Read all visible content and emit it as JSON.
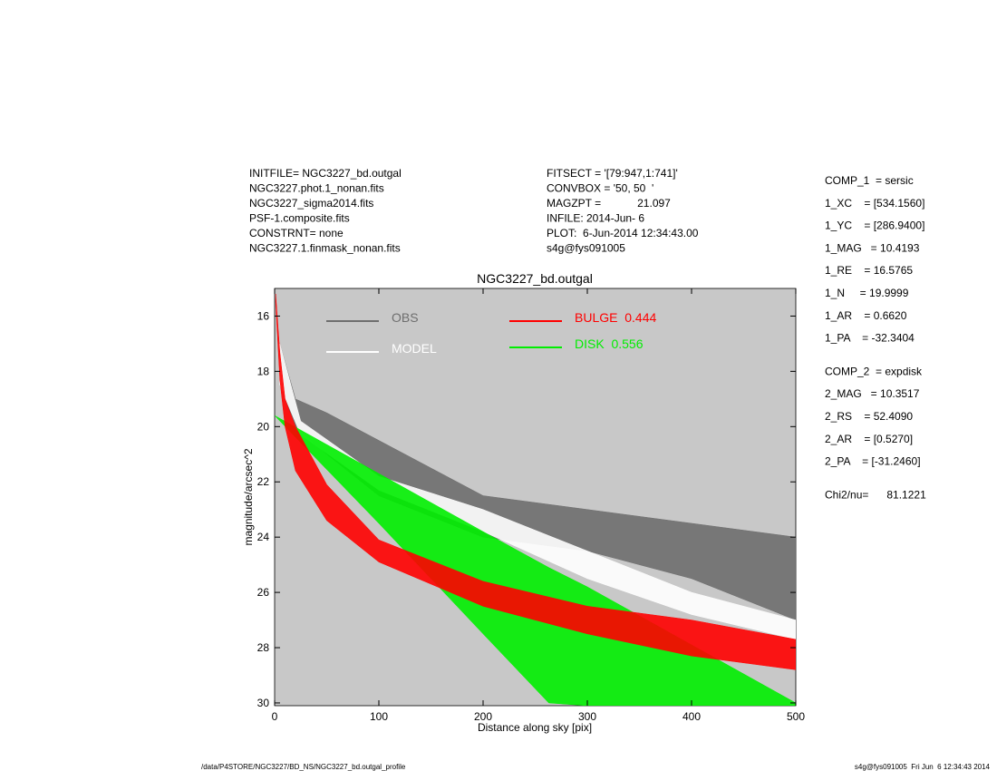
{
  "header": {
    "left": [
      "INITFILE= NGC3227_bd.outgal",
      "NGC3227.phot.1_nonan.fits",
      "NGC3227_sigma2014.fits",
      "PSF-1.composite.fits",
      "CONSTRNT= none",
      "NGC3227.1.finmask_nonan.fits"
    ],
    "middle": [
      "FITSECT = '[79:947,1:741]'",
      "CONVBOX = '50, 50  '",
      "MAGZPT =            21.097",
      "INFILE: 2014-Jun- 6",
      "PLOT:  6-Jun-2014 12:34:43.00",
      "s4g@fys091005"
    ]
  },
  "components": [
    [
      "COMP_1  = sersic",
      "1_XC    = [534.1560]",
      "1_YC    = [286.9400]",
      "1_MAG   = 10.4193",
      "1_RE    = 16.5765",
      "1_N     = 19.9999",
      "1_AR    = 0.6620",
      "1_PA    = -32.3404"
    ],
    [
      "COMP_2  = expdisk",
      "2_MAG   = 10.3517",
      "2_RS    = 52.4090",
      "2_AR    = [0.5270]",
      "2_PA    = [-31.2460]"
    ],
    [
      "Chi2/nu=      81.1221"
    ]
  ],
  "footer": {
    "left": "/data/P4STORE/NGC3227/BD_NS/NGC3227_bd.outgal_profile",
    "right": "s4g@fys091005  Fri Jun  6 12:34:43 2014"
  },
  "chart_data": {
    "type": "band",
    "title": "NGC3227_bd.outgal",
    "x_label": "Distance along sky [pix]",
    "y_label": "magnitude/arcsec^2",
    "xlim": [
      0,
      500
    ],
    "ylim": [
      15,
      30.1
    ],
    "y_inverted": true,
    "xticks": [
      0,
      100,
      200,
      300,
      400,
      500
    ],
    "yticks": [
      16,
      18,
      20,
      22,
      24,
      26,
      28,
      30
    ],
    "background": "#c8c8c8",
    "series": [
      {
        "name": "OBS",
        "color": "#6e6e6e",
        "x": [
          5,
          20,
          50,
          100,
          200,
          300,
          400,
          500
        ],
        "values": [
          17,
          19,
          19.5,
          20.5,
          22.5,
          23,
          23.5,
          24
        ],
        "values_max": [
          18.5,
          20,
          21,
          22.5,
          24,
          24.5,
          25.5,
          27
        ]
      },
      {
        "name": "MODEL",
        "color": "#ffffff",
        "x": [
          5,
          25,
          100,
          200,
          300,
          400,
          500
        ],
        "values": [
          17,
          19.8,
          21.8,
          23,
          24.5,
          26,
          27
        ],
        "values_max": [
          18.5,
          20.3,
          22.3,
          23.8,
          25.5,
          26.8,
          27.7
        ]
      },
      {
        "name": "BULGE  0.444",
        "color": "#ff0000",
        "x": [
          1,
          5,
          10,
          20,
          50,
          100,
          200,
          300,
          400,
          500
        ],
        "values": [
          15.2,
          17.3,
          19,
          20,
          22.1,
          24.1,
          25.6,
          26.5,
          27,
          27.7
        ],
        "values_max": [
          15.5,
          18.3,
          20,
          21.6,
          23.4,
          24.9,
          26.5,
          27.5,
          28.3,
          28.8
        ]
      },
      {
        "name": "DISK  0.556",
        "color": "#00ee00",
        "x": [
          0,
          100,
          200,
          263,
          300,
          400,
          500
        ],
        "values": [
          19.6,
          21.7,
          23.8,
          25.1,
          25.8,
          27.9,
          30
        ],
        "values_max": [
          19.6,
          23.5,
          27.5,
          30,
          30.1,
          30.1,
          30.1
        ]
      }
    ],
    "draw_order": [
      0,
      1,
      3,
      2
    ]
  }
}
